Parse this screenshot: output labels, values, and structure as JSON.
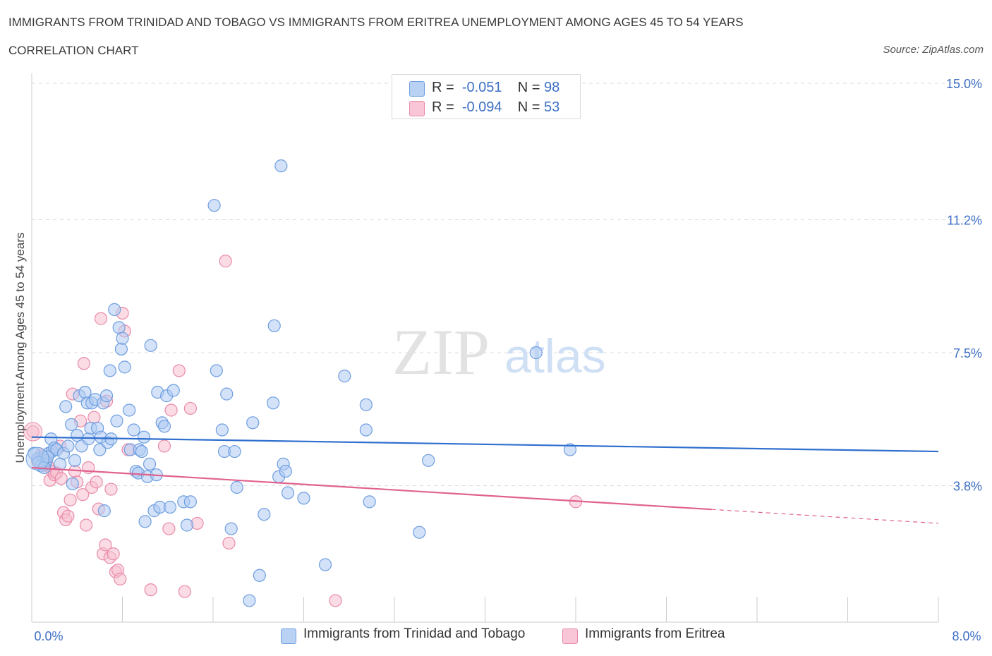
{
  "header": {
    "title": "IMMIGRANTS FROM TRINIDAD AND TOBAGO VS IMMIGRANTS FROM ERITREA UNEMPLOYMENT AMONG AGES 45 TO 54 YEARS",
    "subtitle": "CORRELATION CHART",
    "source": "Source: ZipAtlas.com"
  },
  "legend": {
    "rows": [
      {
        "r_label": "R =",
        "r_value": "-0.051",
        "n_label": "N =",
        "n_value": "98"
      },
      {
        "r_label": "R =",
        "r_value": "-0.094",
        "n_label": "N =",
        "n_value": "53"
      }
    ]
  },
  "watermark": {
    "zip": "ZIP",
    "atlas": "atlas"
  },
  "colors": {
    "blue_fill": "#aecbf2",
    "blue_stroke": "#6e9ee0",
    "blue_line": "#2f6fce",
    "pink_fill": "#f7bfd0",
    "pink_stroke": "#e98aa9",
    "pink_line": "#e0628e",
    "tick_text": "#3d6fc4",
    "grid": "#dcdcdc"
  },
  "chart_data": {
    "type": "scatter",
    "xlabel": "",
    "ylabel": "Unemployment Among Ages 45 to 54 years",
    "xlim": [
      0,
      8.0
    ],
    "ylim": [
      0,
      15.0
    ],
    "x_tick_labels": [
      {
        "value": 0,
        "label": "0.0%"
      },
      {
        "value": 8.0,
        "label": "8.0%"
      }
    ],
    "y_ticks": [
      {
        "value": 3.8,
        "label": "3.8%"
      },
      {
        "value": 7.5,
        "label": "7.5%"
      },
      {
        "value": 11.2,
        "label": "11.2%"
      },
      {
        "value": 15.0,
        "label": "15.0%"
      }
    ],
    "grid": "horizontal dashed",
    "legend_placement": "top-center and bottom",
    "series": [
      {
        "name": "Immigrants from Trinidad and Tobago",
        "color": "blue",
        "trend": {
          "x": [
            0.0,
            8.0
          ],
          "y": [
            5.15,
            4.75
          ]
        },
        "points": [
          [
            0.05,
            4.55
          ],
          [
            0.08,
            4.35
          ],
          [
            0.1,
            4.6
          ],
          [
            0.12,
            4.4
          ],
          [
            0.13,
            4.5
          ],
          [
            0.15,
            4.7
          ],
          [
            0.17,
            5.1
          ],
          [
            0.18,
            4.75
          ],
          [
            0.2,
            4.85
          ],
          [
            0.22,
            4.8
          ],
          [
            0.25,
            4.4
          ],
          [
            0.28,
            4.7
          ],
          [
            0.3,
            6.0
          ],
          [
            0.32,
            4.9
          ],
          [
            0.35,
            5.5
          ],
          [
            0.36,
            3.85
          ],
          [
            0.38,
            4.5
          ],
          [
            0.4,
            5.2
          ],
          [
            0.42,
            6.3
          ],
          [
            0.44,
            4.9
          ],
          [
            0.47,
            6.4
          ],
          [
            0.49,
            6.1
          ],
          [
            0.5,
            5.1
          ],
          [
            0.52,
            5.4
          ],
          [
            0.53,
            6.1
          ],
          [
            0.56,
            6.2
          ],
          [
            0.58,
            5.4
          ],
          [
            0.6,
            4.8
          ],
          [
            0.61,
            5.15
          ],
          [
            0.63,
            6.1
          ],
          [
            0.64,
            3.1
          ],
          [
            0.66,
            6.3
          ],
          [
            0.67,
            5.0
          ],
          [
            0.69,
            7.0
          ],
          [
            0.7,
            5.1
          ],
          [
            0.73,
            8.7
          ],
          [
            0.75,
            5.6
          ],
          [
            0.77,
            8.2
          ],
          [
            0.79,
            7.6
          ],
          [
            0.8,
            7.9
          ],
          [
            0.82,
            7.1
          ],
          [
            0.86,
            5.9
          ],
          [
            0.87,
            4.8
          ],
          [
            0.9,
            5.35
          ],
          [
            0.92,
            4.2
          ],
          [
            0.94,
            4.15
          ],
          [
            0.95,
            4.8
          ],
          [
            0.97,
            4.75
          ],
          [
            0.99,
            5.15
          ],
          [
            1.0,
            2.8
          ],
          [
            1.02,
            4.05
          ],
          [
            1.04,
            4.4
          ],
          [
            1.05,
            7.7
          ],
          [
            1.08,
            3.1
          ],
          [
            1.1,
            4.1
          ],
          [
            1.11,
            6.4
          ],
          [
            1.13,
            3.2
          ],
          [
            1.15,
            5.55
          ],
          [
            1.17,
            5.45
          ],
          [
            1.19,
            6.3
          ],
          [
            1.22,
            3.2
          ],
          [
            1.25,
            6.45
          ],
          [
            1.34,
            3.35
          ],
          [
            1.37,
            2.7
          ],
          [
            1.4,
            3.35
          ],
          [
            1.61,
            11.6
          ],
          [
            1.63,
            7.0
          ],
          [
            1.68,
            5.35
          ],
          [
            1.7,
            4.75
          ],
          [
            1.72,
            6.35
          ],
          [
            1.76,
            2.6
          ],
          [
            1.79,
            4.75
          ],
          [
            1.81,
            3.75
          ],
          [
            1.92,
            0.6
          ],
          [
            1.95,
            5.55
          ],
          [
            2.01,
            1.3
          ],
          [
            2.05,
            3.0
          ],
          [
            2.13,
            6.1
          ],
          [
            2.14,
            8.25
          ],
          [
            2.18,
            4.05
          ],
          [
            2.2,
            12.7
          ],
          [
            2.22,
            4.4
          ],
          [
            2.24,
            4.2
          ],
          [
            2.26,
            3.6
          ],
          [
            2.4,
            3.45
          ],
          [
            2.59,
            1.6
          ],
          [
            2.76,
            6.85
          ],
          [
            2.95,
            6.05
          ],
          [
            2.95,
            5.35
          ],
          [
            2.98,
            3.35
          ],
          [
            3.42,
            2.5
          ],
          [
            3.5,
            4.5
          ],
          [
            4.45,
            7.5
          ],
          [
            4.75,
            4.8
          ],
          [
            0.02,
            4.7
          ],
          [
            0.06,
            4.45
          ],
          [
            0.11,
            4.3
          ],
          [
            0.14,
            4.6
          ]
        ]
      },
      {
        "name": "Immigrants from Eritrea",
        "color": "pink",
        "trend": {
          "x": [
            0.0,
            8.0
          ],
          "y": [
            4.3,
            2.75
          ],
          "solid_until_x": 6.0
        },
        "points": [
          [
            0.01,
            5.3
          ],
          [
            0.08,
            4.65
          ],
          [
            0.1,
            4.45
          ],
          [
            0.12,
            4.55
          ],
          [
            0.14,
            4.35
          ],
          [
            0.16,
            3.95
          ],
          [
            0.18,
            4.2
          ],
          [
            0.2,
            4.1
          ],
          [
            0.22,
            4.15
          ],
          [
            0.25,
            4.9
          ],
          [
            0.26,
            4.0
          ],
          [
            0.28,
            3.05
          ],
          [
            0.3,
            2.85
          ],
          [
            0.32,
            2.95
          ],
          [
            0.34,
            3.4
          ],
          [
            0.36,
            6.35
          ],
          [
            0.38,
            4.2
          ],
          [
            0.4,
            3.9
          ],
          [
            0.43,
            5.6
          ],
          [
            0.45,
            3.55
          ],
          [
            0.46,
            7.2
          ],
          [
            0.48,
            2.7
          ],
          [
            0.5,
            4.3
          ],
          [
            0.53,
            3.75
          ],
          [
            0.55,
            5.7
          ],
          [
            0.57,
            3.9
          ],
          [
            0.59,
            3.15
          ],
          [
            0.61,
            8.45
          ],
          [
            0.63,
            1.9
          ],
          [
            0.65,
            2.15
          ],
          [
            0.66,
            6.15
          ],
          [
            0.69,
            1.8
          ],
          [
            0.7,
            3.7
          ],
          [
            0.72,
            1.9
          ],
          [
            0.74,
            1.4
          ],
          [
            0.76,
            1.45
          ],
          [
            0.78,
            1.2
          ],
          [
            0.8,
            8.6
          ],
          [
            0.82,
            8.1
          ],
          [
            0.85,
            4.8
          ],
          [
            1.05,
            0.9
          ],
          [
            1.17,
            4.9
          ],
          [
            1.21,
            2.6
          ],
          [
            1.23,
            5.9
          ],
          [
            1.3,
            7.0
          ],
          [
            1.35,
            0.85
          ],
          [
            1.4,
            5.95
          ],
          [
            1.46,
            2.75
          ],
          [
            1.71,
            10.05
          ],
          [
            1.74,
            2.2
          ],
          [
            2.68,
            0.6
          ],
          [
            4.8,
            3.35
          ],
          [
            0.05,
            4.5
          ]
        ]
      }
    ]
  }
}
